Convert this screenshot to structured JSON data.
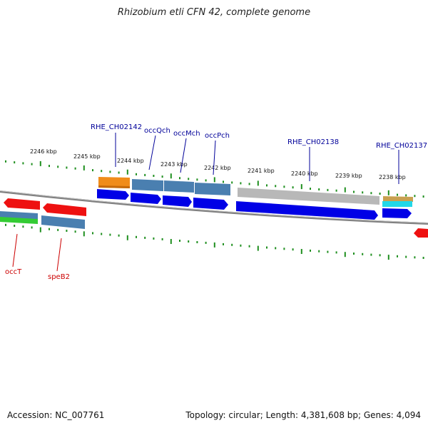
{
  "title": "Rhizobium etli CFN 42, complete genome",
  "footer": {
    "accession": "Accession: NC_007761",
    "stats": "Topology: circular; Length: 4,381,608 bp; Genes: 4,094"
  },
  "colors": {
    "tick": "#1f8f1f",
    "backbone": "#808080",
    "label_forward": "#000099",
    "label_reverse": "#cc0000",
    "cds_blue": "#0000e6",
    "gene_steel": "#4a7fb0",
    "gene_red": "#ee1111",
    "gene_orange": "#f08c1a",
    "gene_gray": "#b8b8b8",
    "gene_cyan": "#22d8e8",
    "gene_green": "#33cc33",
    "gene_tan": "#c8a050"
  },
  "scale": {
    "unit": "kbp",
    "labels": [
      "2246 kbp",
      "2245 kbp",
      "2244 kbp",
      "2243 kbp",
      "2242 kbp",
      "2241 kbp",
      "2240 kbp",
      "2239 kbp",
      "2238 kbp"
    ]
  },
  "gene_labels": {
    "top": [
      "RHE_CH02142",
      "occQch",
      "occMch",
      "occPch",
      "RHE_CH02138",
      "RHE_CH02137"
    ],
    "bottom": [
      "occT",
      "speB2"
    ]
  }
}
